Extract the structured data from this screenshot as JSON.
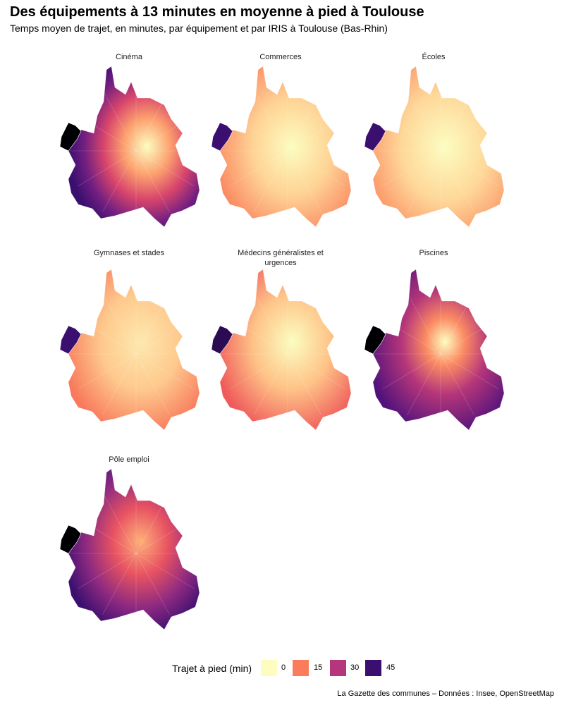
{
  "title": "Des équipements à 13 minutes en moyenne à pied à Toulouse",
  "subtitle": "Temps moyen de trajet, en minutes, par équipement et par IRIS à Toulouse (Bas-Rhin)",
  "panels": [
    "Cinéma",
    "Commerces",
    "Écoles",
    "Gymnases et stades",
    "Médecins généralistes et urgences",
    "Piscines",
    "Pôle emploi"
  ],
  "legend": {
    "title": "Trajet à pied (min)",
    "items": [
      {
        "value": 0,
        "color": "#fcfdbf"
      },
      {
        "value": 15,
        "color": "#f97c5d"
      },
      {
        "value": 30,
        "color": "#b5367a"
      },
      {
        "value": 45,
        "color": "#3b0f70"
      }
    ]
  },
  "caption": "La Gazette des communes – Données : Insee, OpenStreetMap"
}
